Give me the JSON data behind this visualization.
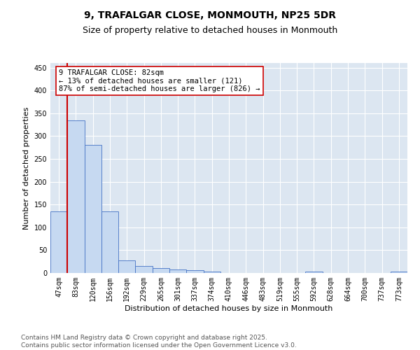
{
  "title": "9, TRAFALGAR CLOSE, MONMOUTH, NP25 5DR",
  "subtitle": "Size of property relative to detached houses in Monmouth",
  "xlabel": "Distribution of detached houses by size in Monmouth",
  "ylabel": "Number of detached properties",
  "bar_labels": [
    "47sqm",
    "83sqm",
    "120sqm",
    "156sqm",
    "192sqm",
    "229sqm",
    "265sqm",
    "301sqm",
    "337sqm",
    "374sqm",
    "410sqm",
    "446sqm",
    "483sqm",
    "519sqm",
    "555sqm",
    "592sqm",
    "628sqm",
    "664sqm",
    "700sqm",
    "737sqm",
    "773sqm"
  ],
  "bar_values": [
    135,
    335,
    280,
    135,
    28,
    15,
    11,
    8,
    6,
    3,
    0,
    0,
    0,
    0,
    0,
    3,
    0,
    0,
    0,
    0,
    3
  ],
  "bar_color": "#c6d9f1",
  "bar_edge_color": "#4472c4",
  "vline_x_index": 1,
  "vline_color": "#cc0000",
  "annotation_text": "9 TRAFALGAR CLOSE: 82sqm\n← 13% of detached houses are smaller (121)\n87% of semi-detached houses are larger (826) →",
  "annotation_box_color": "#ffffff",
  "annotation_box_edge_color": "#cc0000",
  "ylim": [
    0,
    460
  ],
  "yticks": [
    0,
    50,
    100,
    150,
    200,
    250,
    300,
    350,
    400,
    450
  ],
  "plot_bg_color": "#dce6f1",
  "footer_line1": "Contains HM Land Registry data © Crown copyright and database right 2025.",
  "footer_line2": "Contains public sector information licensed under the Open Government Licence v3.0.",
  "title_fontsize": 10,
  "subtitle_fontsize": 9,
  "axis_label_fontsize": 8,
  "tick_fontsize": 7,
  "annotation_fontsize": 7.5,
  "footer_fontsize": 6.5
}
